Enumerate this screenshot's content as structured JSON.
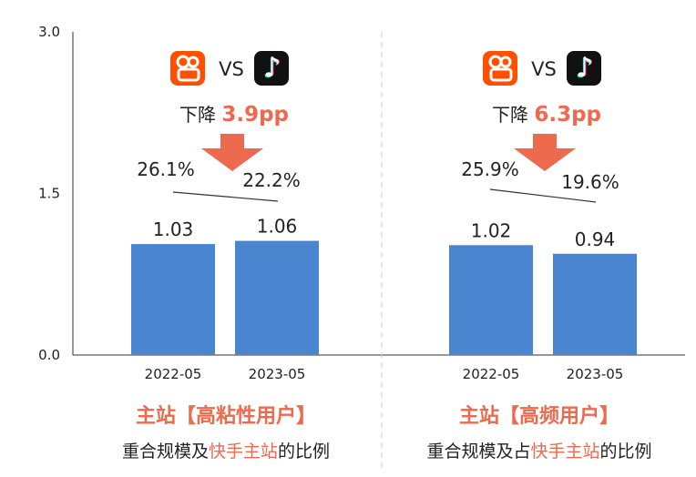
{
  "chart_data": {
    "type": "bar",
    "ylim": [
      0,
      3.0
    ],
    "y_ticks": [
      "3.0",
      "1.5",
      "0.0"
    ],
    "y_tick_values": [
      3.0,
      1.5,
      0.0
    ],
    "colors": {
      "bar": "#4a86d0",
      "accent": "#ec6a4e",
      "axis": "#333333",
      "text": "#222222",
      "kuaishou": "#ff5000",
      "douyin": "#111111"
    },
    "panels": [
      {
        "categories": [
          "2022-05",
          "2023-05"
        ],
        "values": [
          1.03,
          1.06
        ],
        "value_labels": [
          "1.03",
          "1.06"
        ],
        "vs_text": "VS",
        "decline_prefix": "下降",
        "decline_value": "3.9pp",
        "share_labels": [
          "26.1%",
          "22.2%"
        ],
        "share_values": [
          26.1,
          22.2
        ],
        "title": "主站【高粘性用户】",
        "subtitle_pre": "重合规模及",
        "subtitle_highlight": "快手主站",
        "subtitle_post": "的比例"
      },
      {
        "categories": [
          "2022-05",
          "2023-05"
        ],
        "values": [
          1.02,
          0.94
        ],
        "value_labels": [
          "1.02",
          "0.94"
        ],
        "vs_text": "VS",
        "decline_prefix": "下降",
        "decline_value": "6.3pp",
        "share_labels": [
          "25.9%",
          "19.6%"
        ],
        "share_values": [
          25.9,
          19.6
        ],
        "title": "主站【高频用户】",
        "subtitle_pre": "重合规模及占",
        "subtitle_highlight": "快手主站",
        "subtitle_post": "的比例"
      }
    ]
  }
}
